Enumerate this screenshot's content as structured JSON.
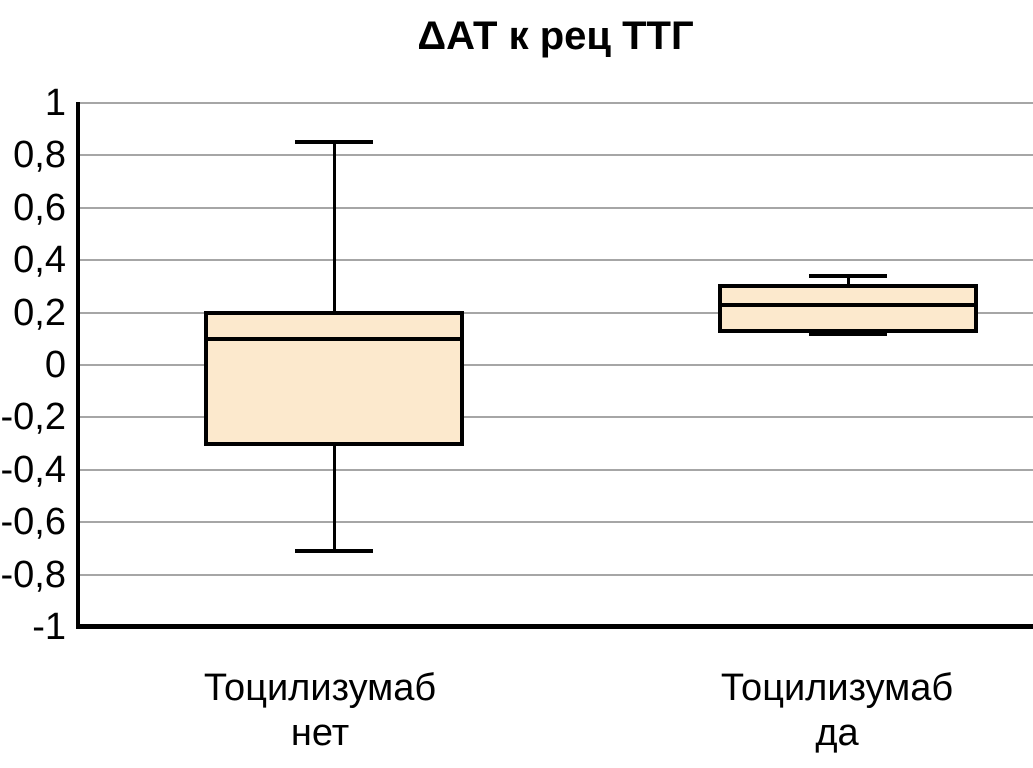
{
  "chart_data": {
    "type": "boxplot",
    "title": "ΔАТ к рец ТТГ",
    "xlabel": "",
    "ylabel": "",
    "ylim": [
      -1,
      1
    ],
    "grid": true,
    "legend": false,
    "decimal_separator": ",",
    "yticks": [
      {
        "value": 1,
        "label": "1"
      },
      {
        "value": 0.8,
        "label": "0,8"
      },
      {
        "value": 0.6,
        "label": "0,6"
      },
      {
        "value": 0.4,
        "label": "0,4"
      },
      {
        "value": 0.2,
        "label": "0,2"
      },
      {
        "value": 0,
        "label": "0"
      },
      {
        "value": -0.2,
        "label": "-0,2"
      },
      {
        "value": -0.4,
        "label": "-0,4"
      },
      {
        "value": -0.6,
        "label": "-0,6"
      },
      {
        "value": -0.8,
        "label": "-0,8"
      },
      {
        "value": -1,
        "label": "-1"
      }
    ],
    "series": [
      {
        "category_lines": [
          "Тоцилизумаб",
          "нет"
        ],
        "whisker_low": -0.71,
        "q1": -0.3,
        "median": 0.1,
        "q3": 0.2,
        "whisker_high": 0.85
      },
      {
        "category_lines": [
          "Тоцилизумаб",
          "да"
        ],
        "whisker_low": 0.12,
        "q1": 0.13,
        "median": 0.23,
        "q3": 0.3,
        "whisker_high": 0.34
      }
    ],
    "colors": {
      "box_fill": "#FCE9CD",
      "box_border": "#000000",
      "median": "#000000",
      "whisker": "#000000",
      "gridline": "#A6A6A6",
      "axis": "#000000",
      "text": "#000000",
      "background": "#FFFFFF"
    }
  }
}
